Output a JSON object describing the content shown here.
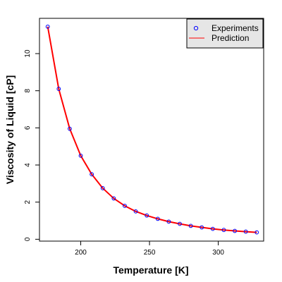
{
  "chart_data": {
    "type": "line",
    "title": "",
    "xlabel": "Temperature [K]",
    "ylabel": "Viscosity of Liquid [cP]",
    "xlim": [
      170,
      333
    ],
    "ylim": [
      -0.1,
      11.9
    ],
    "xticks": [
      200,
      250,
      300
    ],
    "yticks": [
      0,
      2,
      4,
      6,
      8,
      10
    ],
    "grid": false,
    "legend_position": "top-right",
    "series": [
      {
        "name": "Experiments",
        "kind": "points",
        "marker": "open-circle",
        "color": "#0000ff",
        "x": [
          176,
          184,
          192,
          200,
          208,
          216,
          224,
          232,
          240,
          248,
          256,
          264,
          272,
          280,
          288,
          296,
          304,
          312,
          320,
          328
        ],
        "y": [
          11.45,
          8.1,
          5.95,
          4.5,
          3.5,
          2.75,
          2.2,
          1.8,
          1.5,
          1.28,
          1.1,
          0.95,
          0.83,
          0.72,
          0.64,
          0.56,
          0.5,
          0.45,
          0.41,
          0.37
        ]
      },
      {
        "name": "Prediction",
        "kind": "line",
        "color": "#ff0000",
        "x": [
          176,
          184,
          192,
          200,
          208,
          216,
          224,
          232,
          240,
          248,
          256,
          264,
          272,
          280,
          288,
          296,
          304,
          312,
          320,
          328
        ],
        "y": [
          11.45,
          8.1,
          5.95,
          4.5,
          3.5,
          2.75,
          2.2,
          1.8,
          1.5,
          1.28,
          1.1,
          0.95,
          0.83,
          0.72,
          0.64,
          0.56,
          0.5,
          0.45,
          0.41,
          0.37
        ]
      }
    ]
  }
}
